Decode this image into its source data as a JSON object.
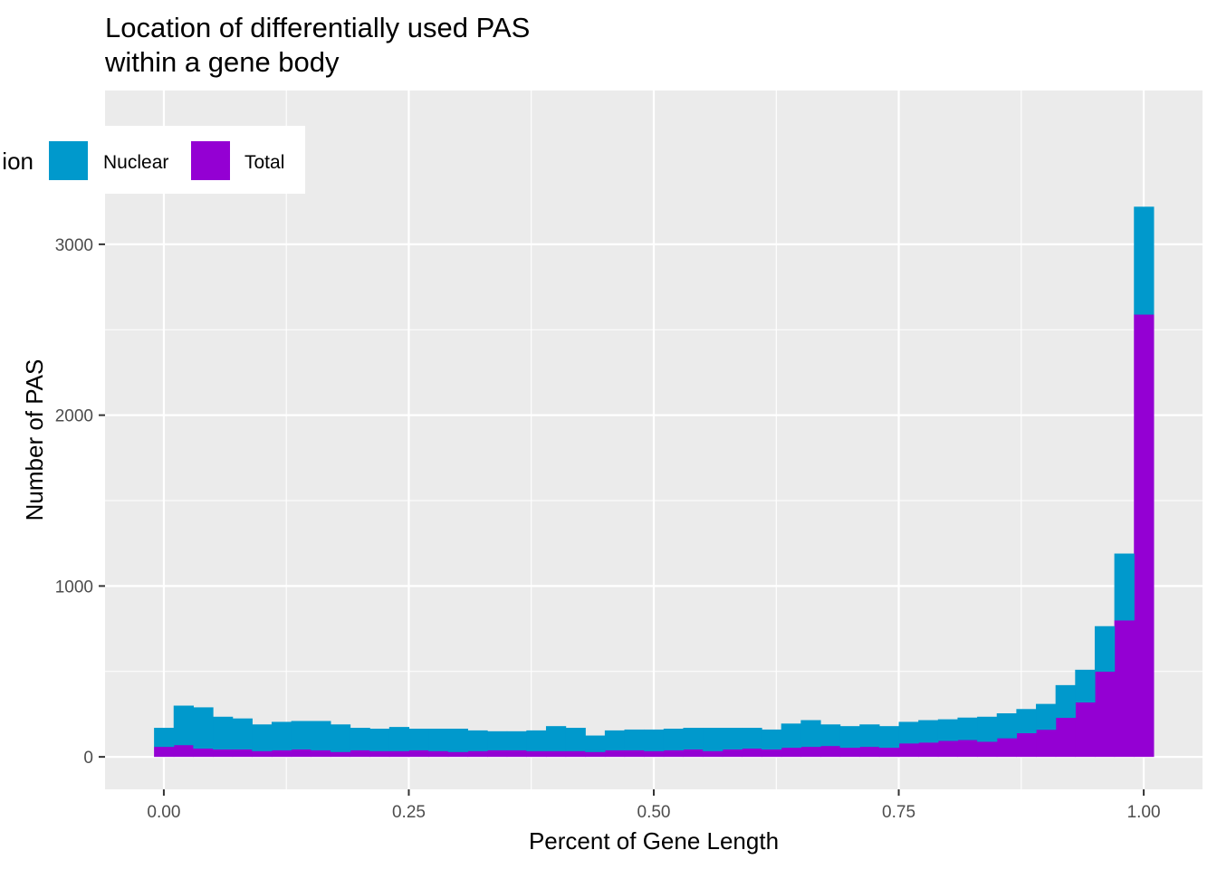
{
  "chart_data": {
    "type": "bar",
    "subtype": "stacked-histogram",
    "title_lines": [
      "Location of differentially used PAS",
      "within a gene body"
    ],
    "xlabel": "Percent of Gene Length",
    "ylabel": "Number of PAS",
    "xlim": [
      -0.06,
      1.06
    ],
    "ylim": [
      -190,
      3900
    ],
    "x_ticks": [
      0.0,
      0.25,
      0.5,
      0.75,
      1.0
    ],
    "x_tick_labels": [
      "0.00",
      "0.25",
      "0.50",
      "0.75",
      "1.00"
    ],
    "y_ticks": [
      0,
      1000,
      2000,
      3000
    ],
    "y_tick_labels": [
      "0",
      "1000",
      "2000",
      "3000"
    ],
    "grid": true,
    "legend": {
      "title": "ion",
      "placement": "top-left",
      "entries": [
        {
          "label": "Nuclear",
          "color": "#0099CC"
        },
        {
          "label": "Total",
          "color": "#9400D3"
        }
      ]
    },
    "bin_width": 0.02,
    "x": [
      0.0,
      0.02,
      0.04,
      0.06,
      0.08,
      0.1,
      0.12,
      0.14,
      0.16,
      0.18,
      0.2,
      0.22,
      0.24,
      0.26,
      0.28,
      0.3,
      0.32,
      0.34,
      0.36,
      0.38,
      0.4,
      0.42,
      0.44,
      0.46,
      0.48,
      0.5,
      0.52,
      0.54,
      0.56,
      0.58,
      0.6,
      0.62,
      0.64,
      0.66,
      0.68,
      0.7,
      0.72,
      0.74,
      0.76,
      0.78,
      0.8,
      0.82,
      0.84,
      0.86,
      0.88,
      0.9,
      0.92,
      0.94,
      0.96,
      0.98,
      1.0
    ],
    "series": [
      {
        "name": "Total",
        "color": "#9400D3",
        "values": [
          60,
          70,
          50,
          45,
          45,
          35,
          40,
          45,
          40,
          30,
          40,
          35,
          35,
          40,
          35,
          30,
          35,
          40,
          40,
          35,
          35,
          35,
          30,
          40,
          40,
          35,
          40,
          45,
          35,
          45,
          50,
          45,
          55,
          60,
          65,
          55,
          60,
          55,
          80,
          85,
          95,
          100,
          90,
          110,
          140,
          160,
          230,
          320,
          500,
          800,
          2590
        ]
      },
      {
        "name": "Nuclear",
        "color": "#0099CC",
        "values": [
          110,
          230,
          240,
          190,
          180,
          155,
          165,
          165,
          170,
          160,
          130,
          130,
          140,
          125,
          130,
          135,
          120,
          110,
          110,
          120,
          145,
          135,
          95,
          115,
          120,
          125,
          125,
          125,
          135,
          125,
          120,
          115,
          140,
          155,
          125,
          125,
          130,
          125,
          125,
          130,
          125,
          130,
          145,
          145,
          140,
          150,
          190,
          190,
          265,
          390,
          630
        ]
      }
    ]
  }
}
